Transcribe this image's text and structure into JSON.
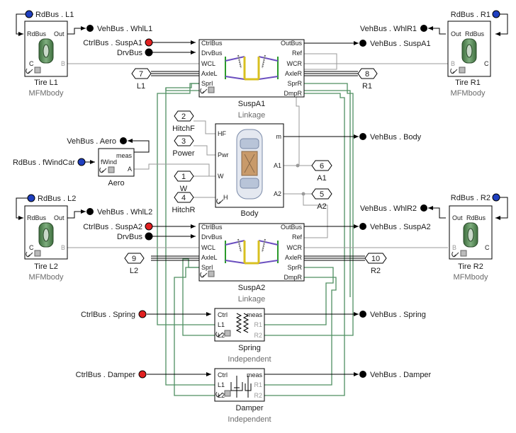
{
  "colors": {
    "bus_in_port": "#1f3fbf",
    "ctrl_port": "#e02020",
    "signal": "#000000",
    "physical_line": "#4f8f62",
    "grey_line": "#9a9a9a"
  },
  "blocks": {
    "tire_l1": {
      "name": "Tire L1",
      "sub": "MFMbody",
      "ports": [
        "RdBus",
        "Out",
        "C",
        "B"
      ]
    },
    "tire_r1": {
      "name": "Tire R1",
      "sub": "MFMbody",
      "ports": [
        "Out",
        "RdBus",
        "B",
        "C"
      ]
    },
    "tire_l2": {
      "name": "Tire L2",
      "sub": "MFMbody",
      "ports": [
        "RdBus",
        "Out",
        "C",
        "B"
      ]
    },
    "tire_r2": {
      "name": "Tire R2",
      "sub": "MFMbody",
      "ports": [
        "Out",
        "RdBus",
        "B",
        "C"
      ]
    },
    "susp_a1": {
      "name": "SuspA1",
      "sub": "Linkage",
      "left_ports": [
        "CtrlBus",
        "DrvBus",
        "WCL",
        "AxleL",
        "SprI"
      ],
      "right_ports": [
        "OutBus",
        "Ref",
        "WCR",
        "AxleR",
        "SprR",
        "DmpR"
      ]
    },
    "susp_a2": {
      "name": "SuspA2",
      "sub": "Linkage",
      "left_ports": [
        "CtrlBus",
        "DrvBus",
        "WCL",
        "AxleL",
        "SprI"
      ],
      "right_ports": [
        "OutBus",
        "Ref",
        "WCR",
        "AxleR",
        "SprR",
        "DmpR"
      ]
    },
    "body": {
      "name": "Body",
      "left_ports": [
        "HF",
        "Pwr",
        "W",
        "H"
      ],
      "right_ports": [
        "m",
        "A1",
        "A2"
      ]
    },
    "aero": {
      "name": "Aero",
      "ports": [
        "meas",
        "fWind",
        "A"
      ]
    },
    "spring": {
      "name": "Spring",
      "sub": "Independent",
      "ports": [
        "Ctrl",
        "L1",
        "L2",
        "meas",
        "R1",
        "R2"
      ]
    },
    "damper": {
      "name": "Damper",
      "sub": "Independent",
      "ports": [
        "Ctrl",
        "L1",
        "L2",
        "meas",
        "R1",
        "R2"
      ]
    }
  },
  "bus_inputs": {
    "rd_l1": "RdBus . L1",
    "rd_r1": "RdBus . R1",
    "rd_l2": "RdBus . L2",
    "rd_r2": "RdBus . R2",
    "wind": "RdBus . fWindCar",
    "ctrl_susp_a1": "CtrlBus . SuspA1",
    "drv_a1": "DrvBus",
    "ctrl_susp_a2": "CtrlBus . SuspA2",
    "drv_a2": "DrvBus",
    "ctrl_spring": "CtrlBus . Spring",
    "ctrl_damper": "CtrlBus . Damper"
  },
  "bus_outputs": {
    "whl_l1": "VehBus . WhlL1",
    "whl_r1": "VehBus . WhlR1",
    "susp_a1": "VehBus . SuspA1",
    "aero": "VehBus . Aero",
    "body": "VehBus . Body",
    "whl_l2": "VehBus . WhlL2",
    "whl_r2": "VehBus . WhlR2",
    "susp_a2": "VehBus . SuspA2",
    "spring": "VehBus . Spring",
    "damper": "VehBus . Damper"
  },
  "connections": {
    "conn_7": {
      "num": "7",
      "label": "L1"
    },
    "conn_8": {
      "num": "8",
      "label": "R1"
    },
    "conn_2": {
      "num": "2",
      "label": "HitchF"
    },
    "conn_3": {
      "num": "3",
      "label": "Power"
    },
    "conn_1": {
      "num": "1",
      "label": "W"
    },
    "conn_4": {
      "num": "4",
      "label": "HitchR"
    },
    "conn_6": {
      "num": "6",
      "label": "A1"
    },
    "conn_5": {
      "num": "5",
      "label": "A2"
    },
    "conn_9": {
      "num": "9",
      "label": "L2"
    },
    "conn_10": {
      "num": "10",
      "label": "R2"
    }
  }
}
